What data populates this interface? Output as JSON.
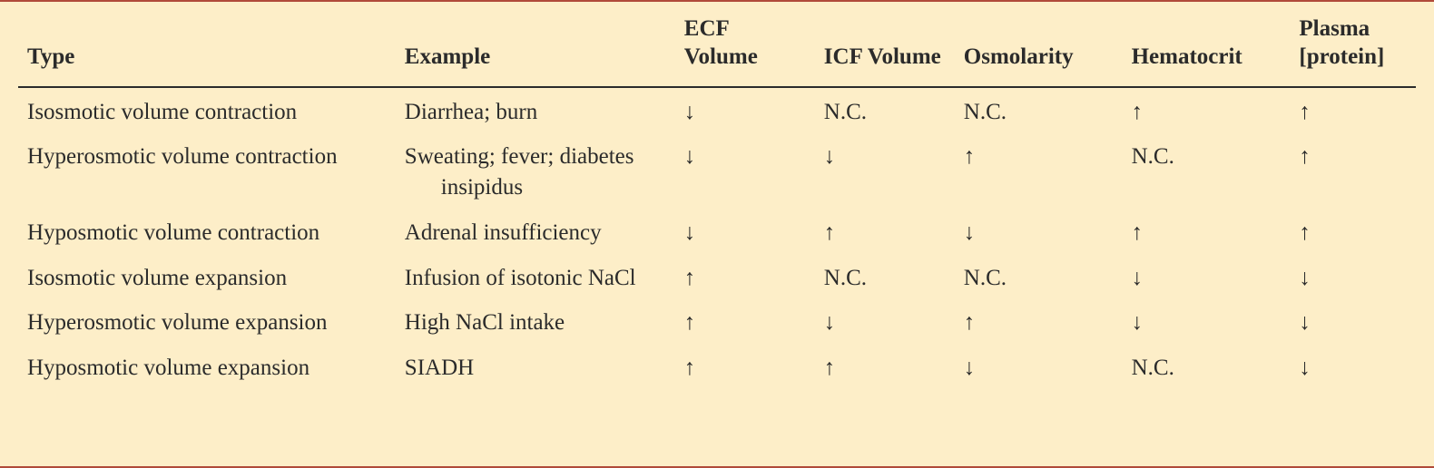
{
  "table": {
    "background_color": "#fdeec8",
    "border_color": "#b04a3a",
    "header_divider_color": "#2b2b2b",
    "text_color": "#2b2b2b",
    "font_family": "Georgia, Times New Roman, serif",
    "header_fontsize_pt": 19,
    "body_fontsize_pt": 19,
    "columns": [
      {
        "key": "type",
        "label": "Type",
        "width_pct": 27
      },
      {
        "key": "example",
        "label": "Example",
        "width_pct": 20
      },
      {
        "key": "ecf",
        "label": "ECF Volume",
        "width_pct": 10
      },
      {
        "key": "icf",
        "label": "ICF Volume",
        "width_pct": 10
      },
      {
        "key": "osm",
        "label": "Osmolarity",
        "width_pct": 12
      },
      {
        "key": "hct",
        "label": "Hematocrit",
        "width_pct": 12
      },
      {
        "key": "plasma",
        "label": "Plasma [protein]",
        "width_pct": 9
      }
    ],
    "rows": [
      {
        "type": "Isosmotic volume contraction",
        "example": "Diarrhea; burn",
        "ecf": "↓",
        "icf": "N.C.",
        "osm": "N.C.",
        "hct": "↑",
        "plasma": "↑"
      },
      {
        "type": "Hyperosmotic volume contraction",
        "example": "Sweating; fever; diabetes insipidus",
        "ecf": "↓",
        "icf": "↓",
        "osm": "↑",
        "hct": "N.C.",
        "plasma": "↑"
      },
      {
        "type": "Hyposmotic volume contraction",
        "example": "Adrenal insufficiency",
        "ecf": "↓",
        "icf": "↑",
        "osm": "↓",
        "hct": "↑",
        "plasma": "↑"
      },
      {
        "type": "Isosmotic volume expansion",
        "example": "Infusion of isotonic NaCl",
        "ecf": "↑",
        "icf": "N.C.",
        "osm": "N.C.",
        "hct": "↓",
        "plasma": "↓"
      },
      {
        "type": "Hyperosmotic volume expansion",
        "example": "High NaCl intake",
        "ecf": "↑",
        "icf": "↓",
        "osm": "↑",
        "hct": "↓",
        "plasma": "↓"
      },
      {
        "type": "Hyposmotic volume expansion",
        "example": "SIADH",
        "ecf": "↑",
        "icf": "↑",
        "osm": "↓",
        "hct": "N.C.",
        "plasma": "↓"
      }
    ]
  }
}
